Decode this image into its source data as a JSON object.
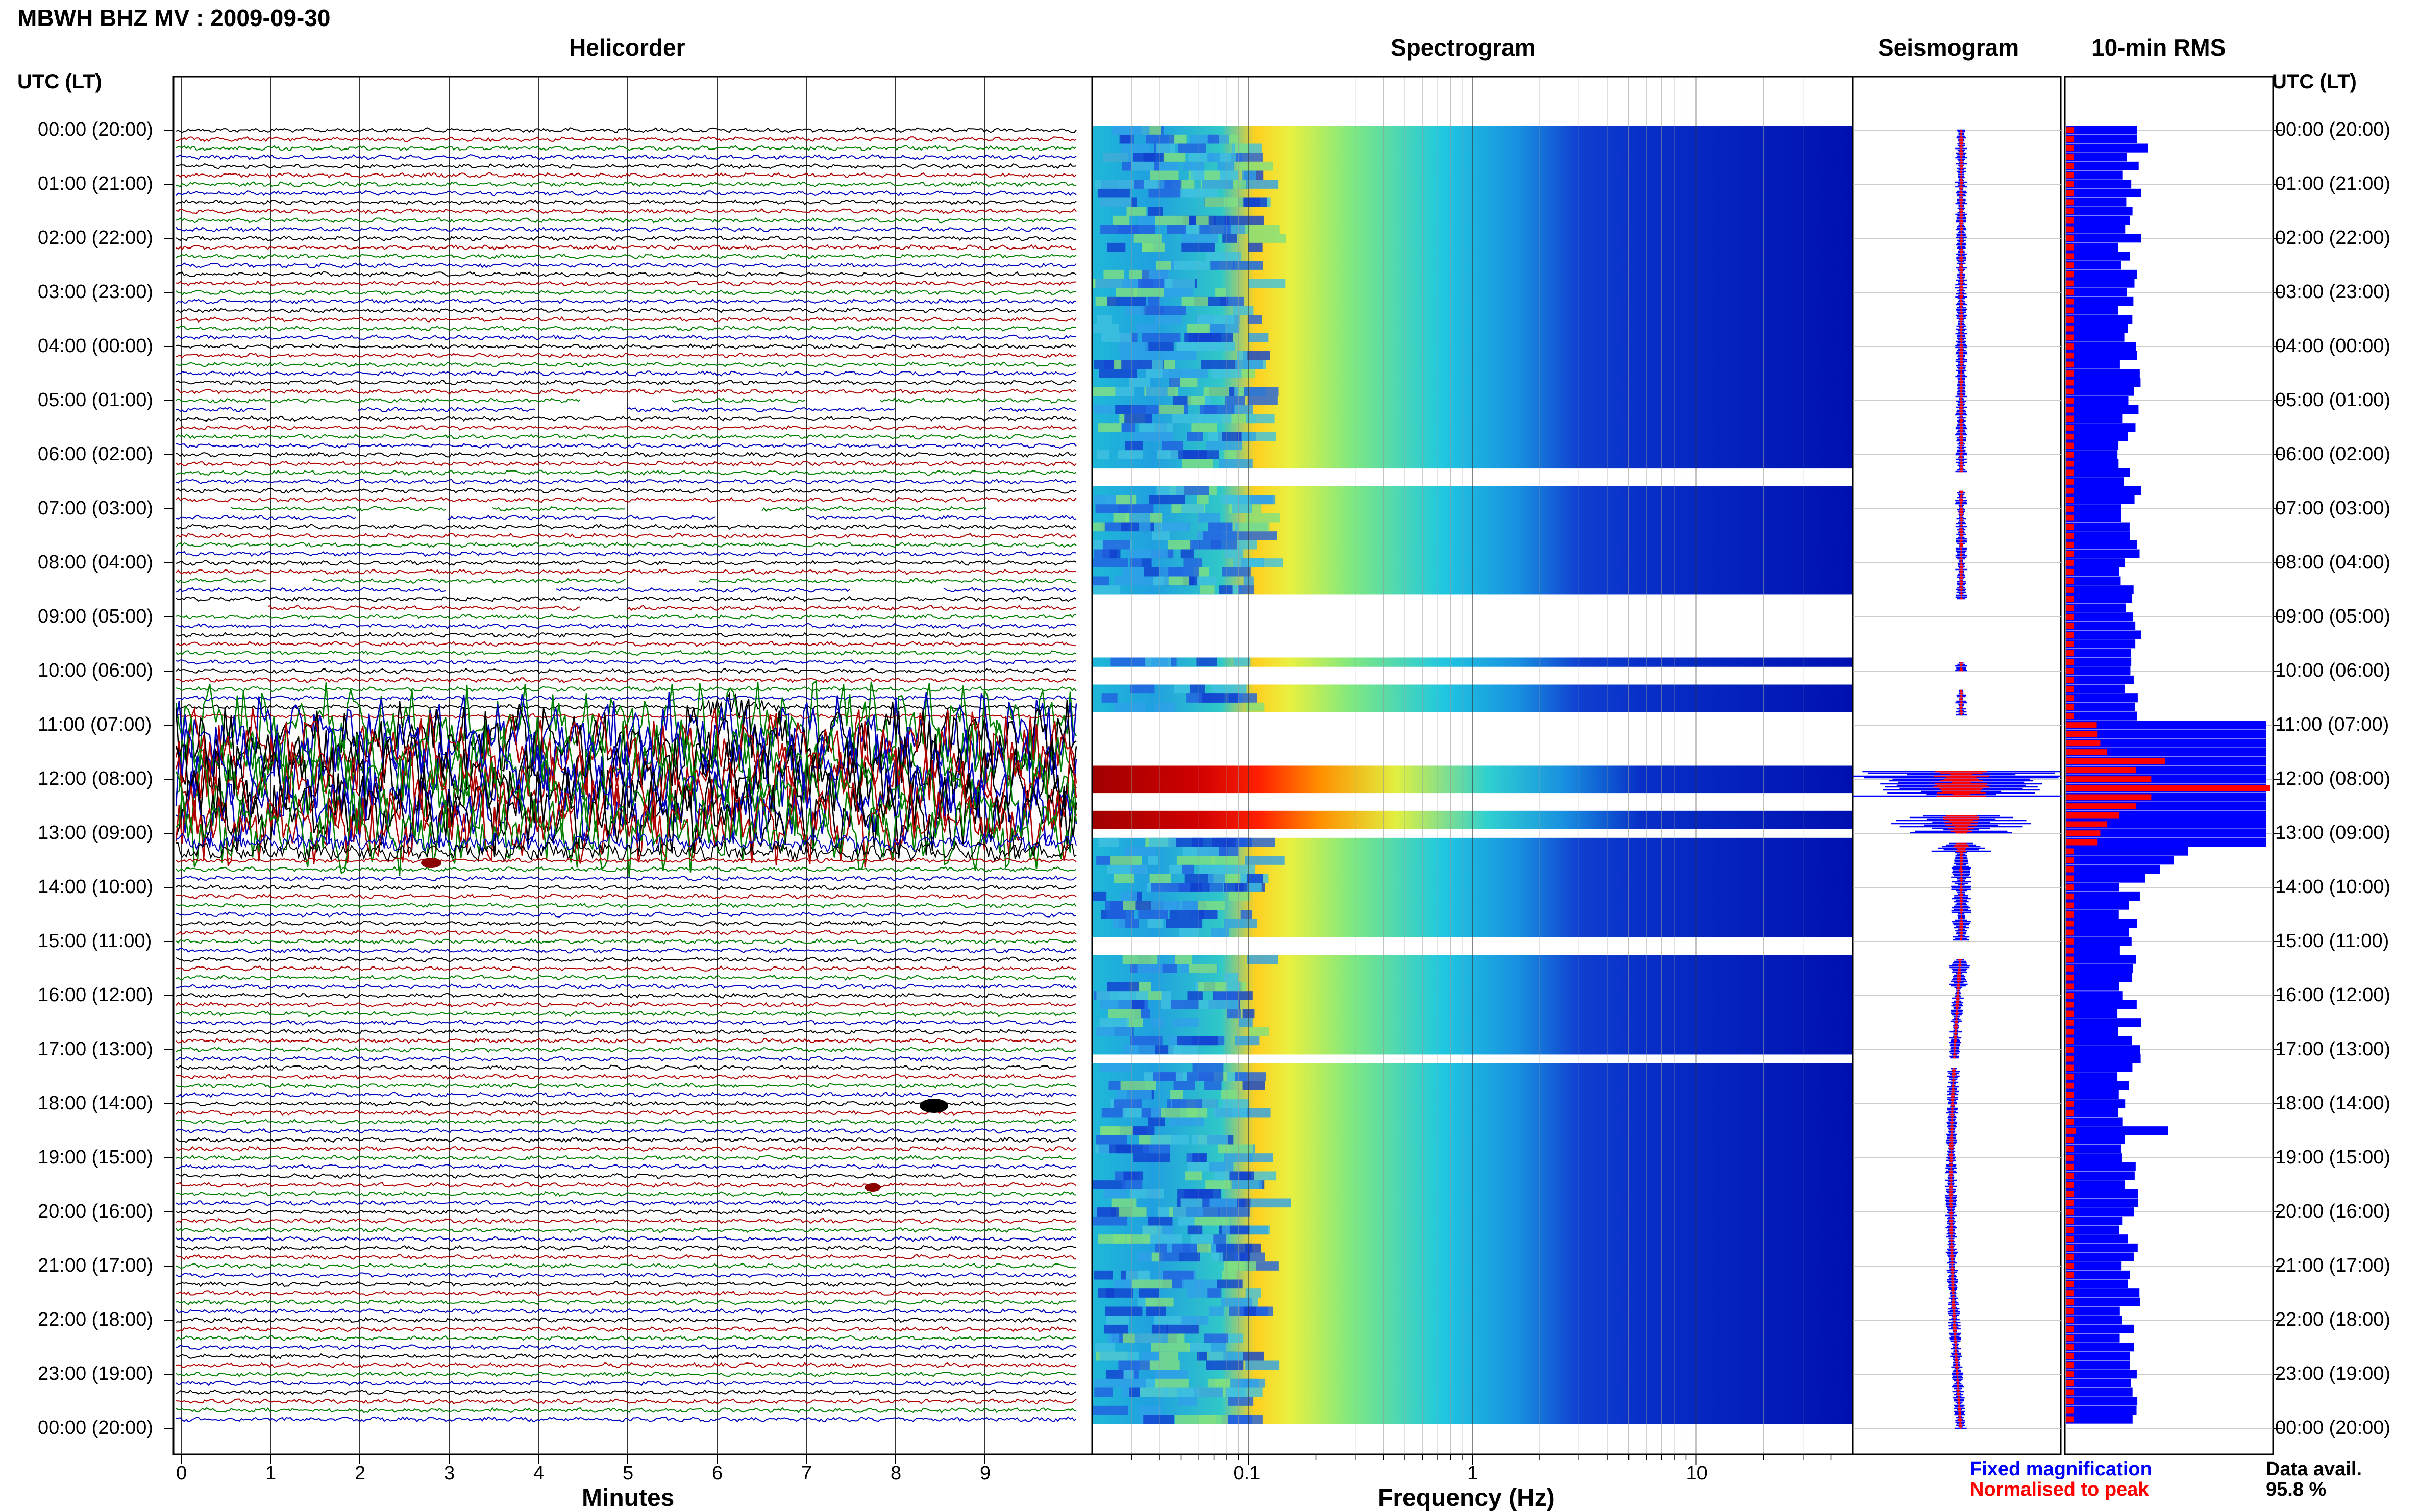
{
  "header": {
    "station_title": "MBWH BHZ MV : 2009-09-30",
    "utc_lt_label": "UTC (LT)"
  },
  "panels": {
    "helicorder": "Helicorder",
    "spectrogram": "Spectrogram",
    "seismogram": "Seismogram",
    "rms": "10-min RMS"
  },
  "axes": {
    "minutes_label": "Minutes",
    "frequency_label": "Frequency (Hz)"
  },
  "legend": {
    "fixed_magnification": "Fixed magnification",
    "normalised_to_peak": "Normalised to peak",
    "fixed_color": "#0000ff",
    "normalised_color": "#ff0000"
  },
  "data_availability": {
    "label": "Data avail.",
    "value": "95.8 %"
  },
  "colors": {
    "trace_cycle": [
      "#000000",
      "#b00000",
      "#008000",
      "#0000c0"
    ],
    "spectrogram_low": "#00008b",
    "spectrogram_high": "#8b0000"
  },
  "chart_data": [
    {
      "type": "line",
      "panel": "Helicorder",
      "xlabel": "Minutes",
      "x_ticks": [
        0,
        1,
        2,
        3,
        4,
        5,
        6,
        7,
        8,
        9
      ],
      "xlim": [
        0,
        10
      ],
      "row_interval_minutes": 10,
      "hour_labels": [
        "00:00 (20:00)",
        "01:00 (21:00)",
        "02:00 (22:00)",
        "03:00 (23:00)",
        "04:00 (00:00)",
        "05:00 (01:00)",
        "06:00 (02:00)",
        "07:00 (03:00)",
        "08:00 (04:00)",
        "09:00 (05:00)",
        "10:00 (06:00)",
        "11:00 (07:00)",
        "12:00 (08:00)",
        "13:00 (09:00)",
        "14:00 (10:00)",
        "15:00 (11:00)",
        "16:00 (12:00)",
        "17:00 (13:00)",
        "18:00 (14:00)",
        "19:00 (15:00)",
        "20:00 (16:00)",
        "21:00 (17:00)",
        "22:00 (18:00)",
        "23:00 (19:00)",
        "00:00 (20:00)"
      ]
    },
    {
      "type": "heatmap",
      "panel": "Spectrogram",
      "xlabel": "Frequency (Hz)",
      "x_scale": "log",
      "x_ticks": [
        "0.1",
        "1",
        "10"
      ],
      "xlim": [
        0.02,
        50
      ]
    },
    {
      "type": "line",
      "panel": "Seismogram",
      "series": [
        {
          "name": "Fixed magnification",
          "color": "#0000ff"
        },
        {
          "name": "Normalised to peak",
          "color": "#ff0000"
        }
      ]
    },
    {
      "type": "bar",
      "panel": "10-min RMS",
      "orientation": "horizontal",
      "series": [
        {
          "name": "Fixed magnification",
          "color": "#0000ff"
        },
        {
          "name": "Normalised to peak",
          "color": "#ff0000"
        }
      ]
    }
  ]
}
